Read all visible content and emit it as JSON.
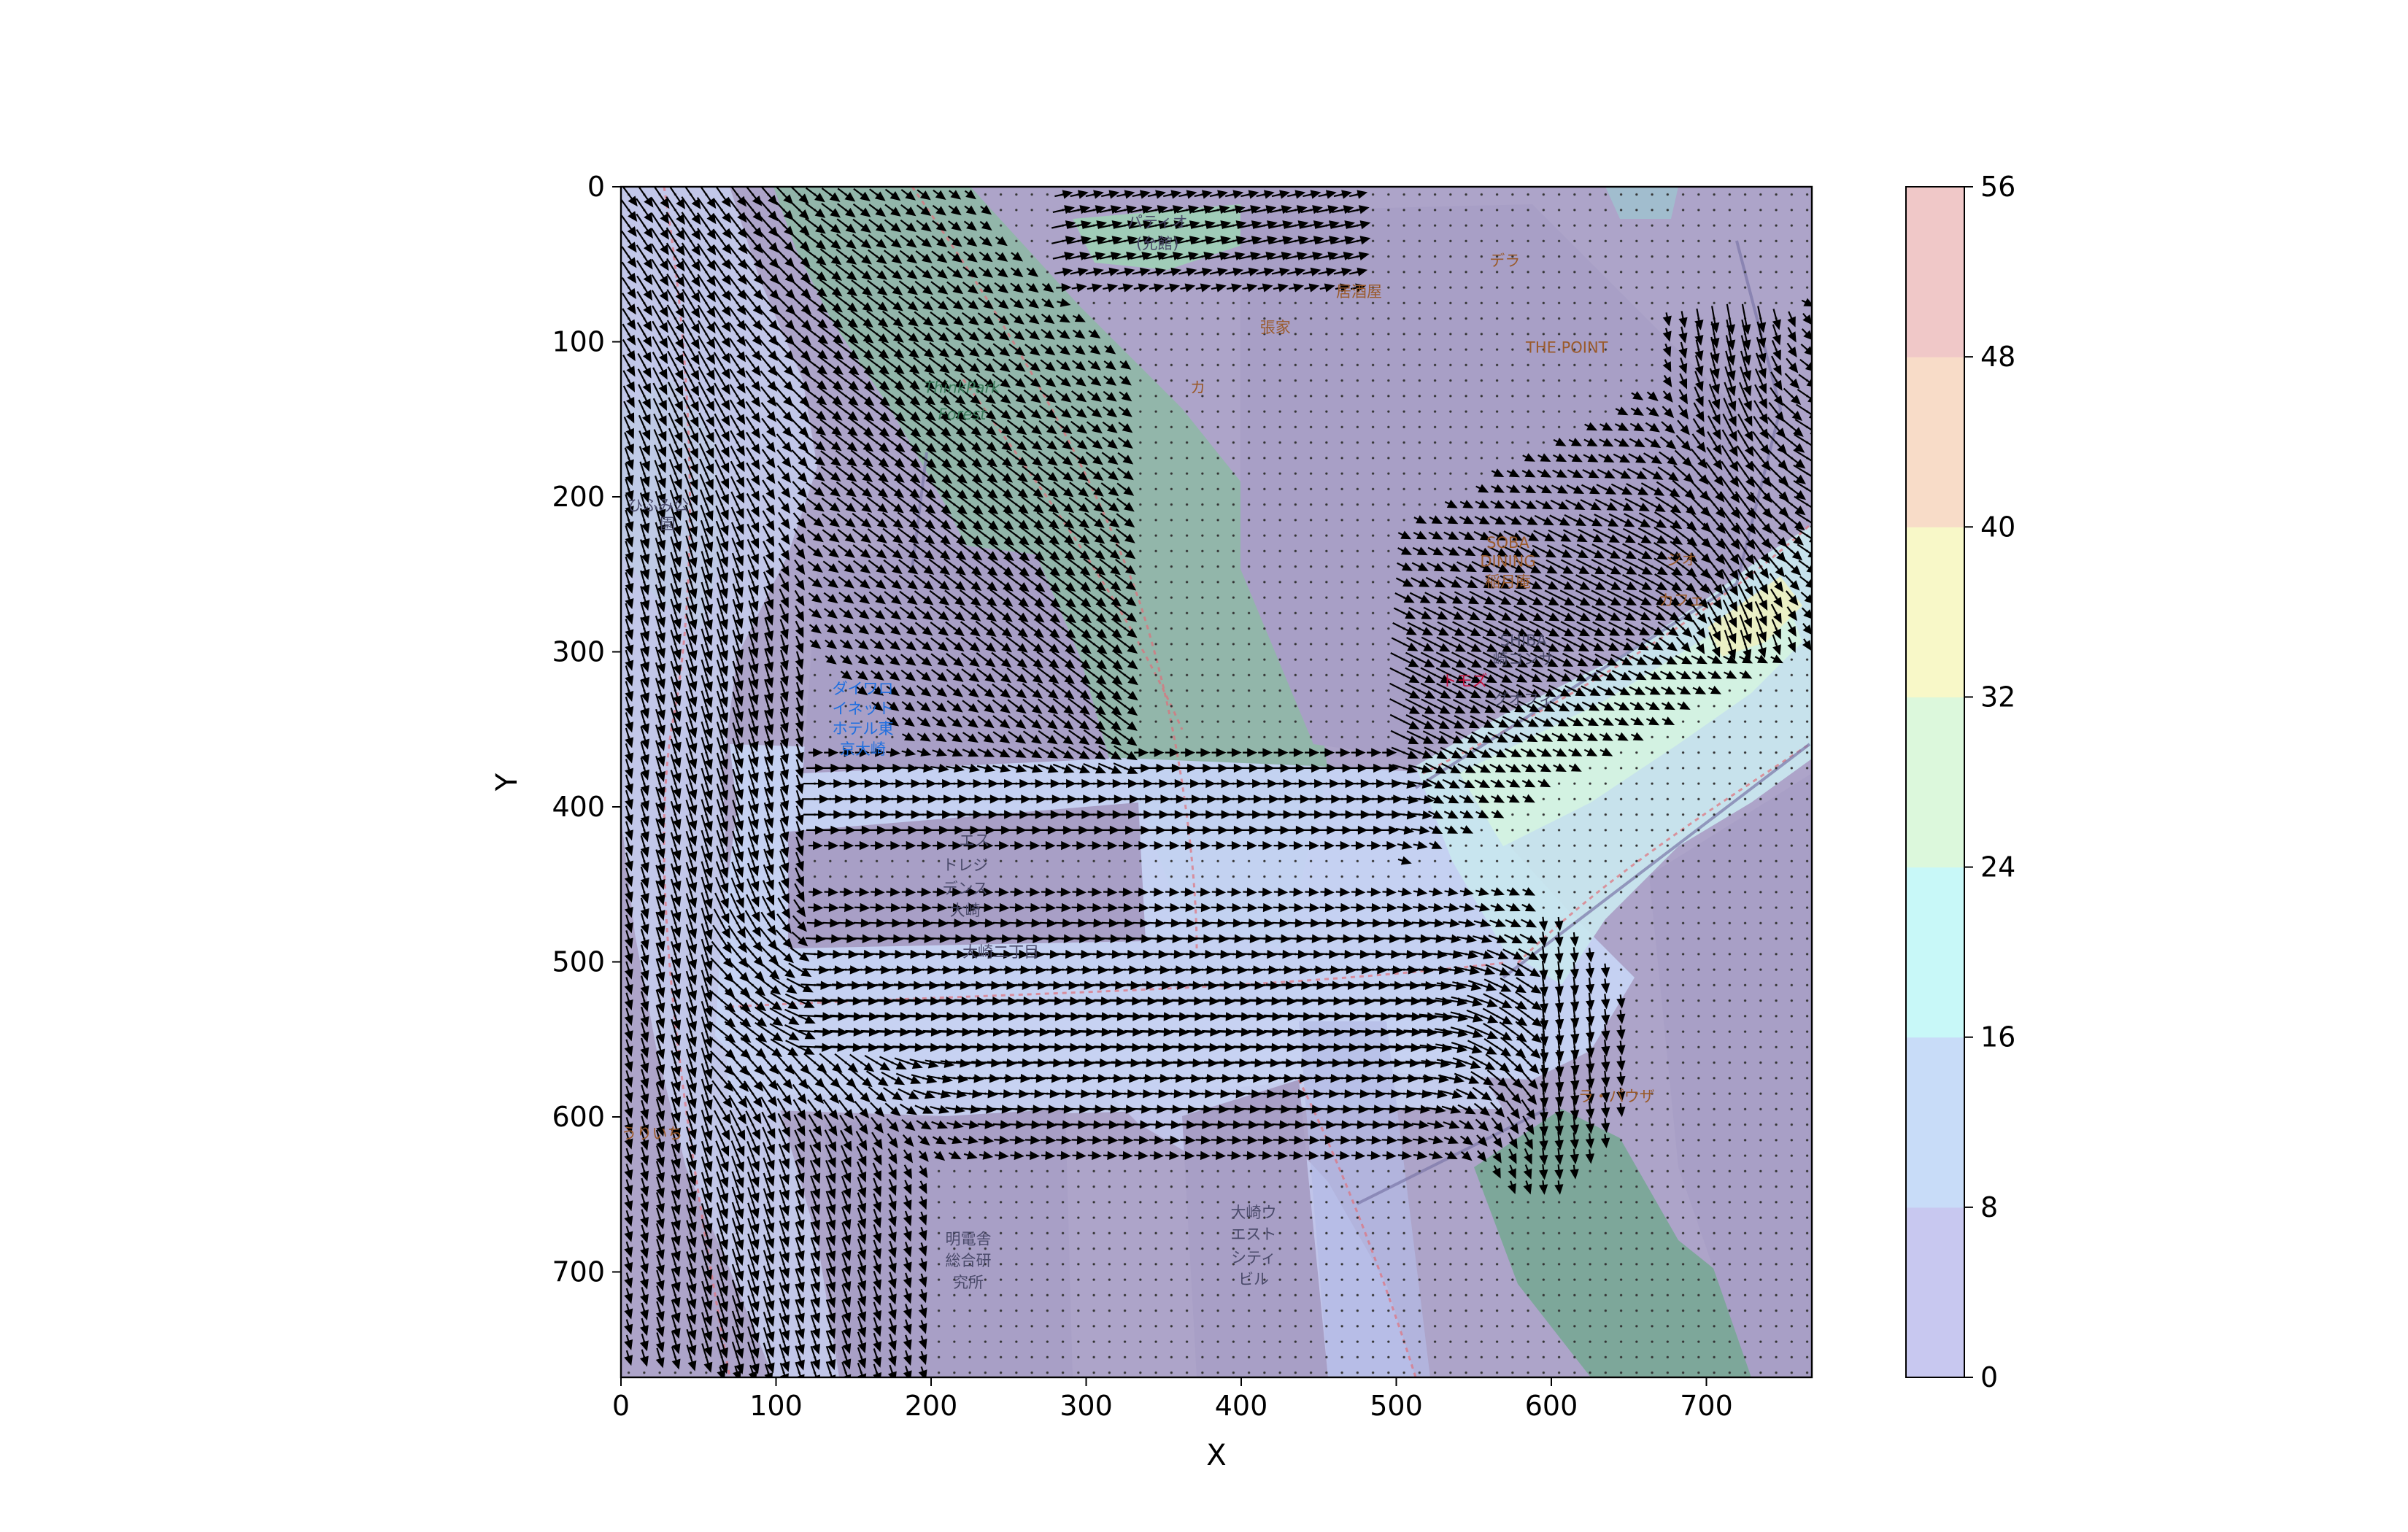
{
  "chart_data": {
    "type": "quiver",
    "title": "",
    "xlabel": "X",
    "ylabel": "Y",
    "xlim": [
      0,
      768
    ],
    "ylim": [
      768,
      0
    ],
    "x_ticks": [
      "0",
      "100",
      "200",
      "300",
      "400",
      "500",
      "600",
      "700"
    ],
    "y_ticks": [
      "0",
      "100",
      "200",
      "300",
      "400",
      "500",
      "600",
      "700"
    ],
    "colorbar": {
      "min": 0,
      "max": 56,
      "ticks": [
        "0",
        "8",
        "16",
        "24",
        "32",
        "40",
        "48",
        "56"
      ],
      "colors": [
        "#c8c8f0",
        "#c8dcf8",
        "#c8f8f8",
        "#dcf8dc",
        "#f8f8c8",
        "#f8dcc8",
        "#f0c8c8"
      ]
    },
    "grid": false,
    "background": "street map of Osaki area (OpenStreetMap-style)",
    "map_labels": [
      {
        "text": "パティオ",
        "x": 346,
        "y": 26,
        "kind": "street"
      },
      {
        "text": "(允館)",
        "x": 346,
        "y": 40,
        "kind": "street"
      },
      {
        "text": "ThinkPark",
        "x": 220,
        "y": 133,
        "kind": "green"
      },
      {
        "text": "Forest",
        "x": 220,
        "y": 150,
        "kind": "green"
      },
      {
        "text": "居酒屋",
        "x": 476,
        "y": 71,
        "kind": "poi"
      },
      {
        "text": "張家",
        "x": 422,
        "y": 94,
        "kind": "poi"
      },
      {
        "text": "デラ",
        "x": 570,
        "y": 51,
        "kind": "poi"
      },
      {
        "text": "THE POINT",
        "x": 610,
        "y": 107,
        "kind": "poi"
      },
      {
        "text": "カ",
        "x": 372,
        "y": 133,
        "kind": "poi"
      },
      {
        "text": "ひふみ公",
        "x": 24,
        "y": 209,
        "kind": "street"
      },
      {
        "text": "園",
        "x": 30,
        "y": 221,
        "kind": "street"
      },
      {
        "text": "SOBA",
        "x": 572,
        "y": 233,
        "kind": "poi"
      },
      {
        "text": "DINING",
        "x": 572,
        "y": 245,
        "kind": "poi"
      },
      {
        "text": "稲月庵",
        "x": 572,
        "y": 258,
        "kind": "poi"
      },
      {
        "text": "ジオ",
        "x": 684,
        "y": 244,
        "kind": "poi"
      },
      {
        "text": "カフェ",
        "x": 684,
        "y": 270,
        "kind": "poi"
      },
      {
        "text": "ダイワロ",
        "x": 156,
        "y": 327,
        "kind": "hotel"
      },
      {
        "text": "イネット",
        "x": 156,
        "y": 340,
        "kind": "hotel"
      },
      {
        "text": "ホテル東",
        "x": 156,
        "y": 353,
        "kind": "hotel"
      },
      {
        "text": "京大崎",
        "x": 156,
        "y": 366,
        "kind": "hotel"
      },
      {
        "text": "SHIBA",
        "x": 582,
        "y": 296,
        "kind": "street"
      },
      {
        "text": "崎コンサ",
        "x": 582,
        "y": 308,
        "kind": "street"
      },
      {
        "text": "トモズ",
        "x": 544,
        "y": 322,
        "kind": "red"
      },
      {
        "text": "グオフィ",
        "x": 582,
        "y": 334,
        "kind": "street"
      },
      {
        "text": "エス",
        "x": 228,
        "y": 425,
        "kind": "street"
      },
      {
        "text": "トレジ",
        "x": 222,
        "y": 441,
        "kind": "street"
      },
      {
        "text": "デンス",
        "x": 222,
        "y": 456,
        "kind": "street"
      },
      {
        "text": "大崎",
        "x": 222,
        "y": 470,
        "kind": "street"
      },
      {
        "text": "大崎二丁目",
        "x": 245,
        "y": 497,
        "kind": "street"
      },
      {
        "text": "ラ・パウザ",
        "x": 642,
        "y": 590,
        "kind": "poi"
      },
      {
        "text": "うりいち",
        "x": 20,
        "y": 614,
        "kind": "poi"
      },
      {
        "text": "明電舎",
        "x": 224,
        "y": 682,
        "kind": "street"
      },
      {
        "text": "総合研",
        "x": 224,
        "y": 696,
        "kind": "street"
      },
      {
        "text": "究所",
        "x": 224,
        "y": 710,
        "kind": "street"
      },
      {
        "text": "大崎ウ",
        "x": 408,
        "y": 665,
        "kind": "street"
      },
      {
        "text": "エスト",
        "x": 408,
        "y": 679,
        "kind": "street"
      },
      {
        "text": "シティ",
        "x": 408,
        "y": 694,
        "kind": "street"
      },
      {
        "text": "ビル",
        "x": 408,
        "y": 708,
        "kind": "street"
      }
    ]
  }
}
